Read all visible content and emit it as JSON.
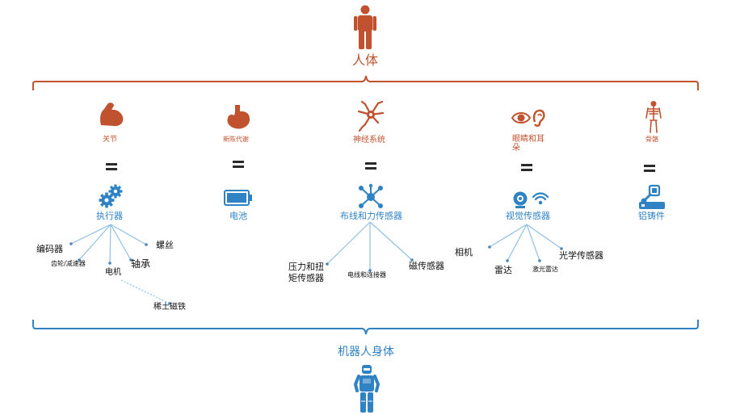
{
  "top": {
    "label": "人体",
    "icon": "human-figure-icon"
  },
  "bottom": {
    "label": "机器人身体",
    "icon": "robot-figure-icon"
  },
  "colors": {
    "human": "#c0522f",
    "robot": "#2f82c4",
    "line": "#8fc0e4",
    "bracket_top": "#c0522f",
    "bracket_bottom": "#2f82c4"
  },
  "columns": [
    {
      "organ": "关节",
      "organ_icon": "muscle-arm-icon",
      "robot": "执行器",
      "robot_icon": "gears-icon",
      "parts": [
        "编码器",
        "齿轮/减速器",
        "电机",
        "轴承",
        "螺丝",
        "稀土磁铁"
      ]
    },
    {
      "organ": "新陈代谢",
      "organ_icon": "stomach-icon",
      "robot": "电池",
      "robot_icon": "battery-icon",
      "parts": []
    },
    {
      "organ": "神经系统",
      "organ_icon": "neuron-icon",
      "robot": "布线和力传感器",
      "robot_icon": "network-nodes-icon",
      "parts": [
        "压力和扭",
        "矩传感器",
        "电线和连接器",
        "磁传感器"
      ]
    },
    {
      "organ": "眼睛和耳",
      "organ_line2": "朵",
      "organ_icon": "eye-ear-icon",
      "robot": "视觉传感器",
      "robot_icon": "camera-wifi-icon",
      "parts": [
        "相机",
        "雷达",
        "激光雷达",
        "光学传感器"
      ]
    },
    {
      "organ": "骨骼",
      "organ_icon": "skeleton-icon",
      "robot": "铝铸件",
      "robot_icon": "robot-arm-icon",
      "parts": []
    }
  ]
}
